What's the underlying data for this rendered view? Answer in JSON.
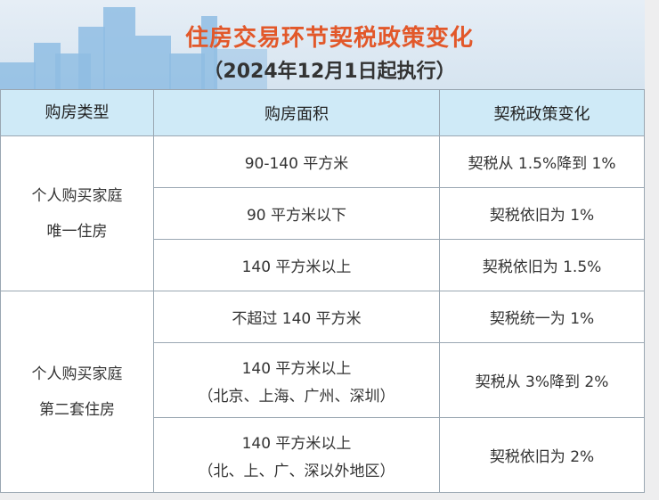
{
  "title": "住房交易环节契税政策变化",
  "subtitle": "（2024年12月1日起执行）",
  "headers": [
    "购房类型",
    "购房面积",
    "契税政策变化"
  ],
  "groups": [
    {
      "type_lines": [
        "个人购买家庭",
        "唯一住房"
      ],
      "rows": [
        {
          "area": [
            "90-140 平方米"
          ],
          "policy": "契税从 1.5%降到 1%"
        },
        {
          "area": [
            "90 平方米以下"
          ],
          "policy": "契税依旧为 1%"
        },
        {
          "area": [
            "140 平方米以上"
          ],
          "policy": "契税依旧为 1.5%"
        }
      ]
    },
    {
      "type_lines": [
        "个人购买家庭",
        "第二套住房"
      ],
      "rows": [
        {
          "area": [
            "不超过 140 平方米"
          ],
          "policy": "契税统一为 1%"
        },
        {
          "area": [
            "140 平方米以上",
            "（北京、上海、广州、深圳）"
          ],
          "policy": "契税从 3%降到 2%"
        },
        {
          "area": [
            "140 平方米以上",
            "（北、上、广、深以外地区）"
          ],
          "policy": "契税依旧为 2%"
        }
      ]
    }
  ],
  "colors": {
    "title": "#e2582a",
    "header_bg": "#cfeaf7",
    "buildings": "#8fbde3"
  }
}
